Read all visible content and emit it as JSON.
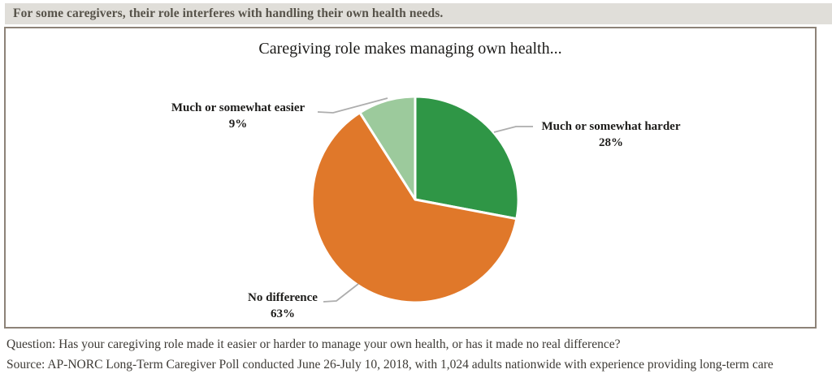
{
  "header": {
    "text": "For some caregivers, their role interferes with handling their own health needs."
  },
  "chart_data": {
    "type": "pie",
    "title": "Caregiving role makes managing own health...",
    "slices": [
      {
        "label": "Much or somewhat harder",
        "value": 28,
        "value_text": "28%",
        "color": "#2f9646"
      },
      {
        "label": "No difference",
        "value": 63,
        "value_text": "63%",
        "color": "#e0782a"
      },
      {
        "label": "Much or somewhat easier",
        "value": 9,
        "value_text": "9%",
        "color": "#9cca9c"
      }
    ],
    "start_angle": "12-oclock",
    "direction": "clockwise",
    "separator_color": "#ffffff",
    "leader_line_color": "#adadad",
    "legend_position": "none",
    "labels_style": "outside-with-leader-lines"
  },
  "footer": {
    "question": "Question: Has your caregiving role made it easier or harder to manage your own health, or has it made no real difference?",
    "source": "Source: AP-NORC Long-Term Caregiver Poll conducted June 26-July 10, 2018, with 1,024 adults nationwide with experience providing long-term care"
  },
  "colors": {
    "background": "#ffffff",
    "header_bg": "#e0ded9",
    "header_text": "#565249",
    "box_border": "#8d8378",
    "title_text": "#1b1a18",
    "label_text": "#1d1c1a",
    "footer_text": "#3d3a35"
  }
}
